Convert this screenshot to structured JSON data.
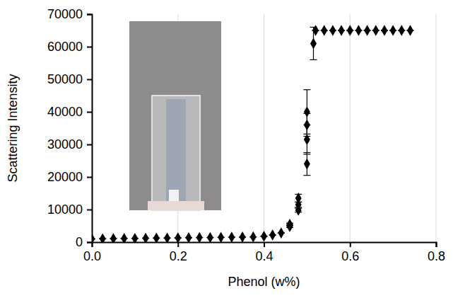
{
  "chart_data": {
    "type": "scatter",
    "x_label": "Phenol (w%)",
    "y_label": "Scattering Intensity",
    "x": [
      0,
      0.025,
      0.05,
      0.075,
      0.1,
      0.125,
      0.15,
      0.175,
      0.2,
      0.225,
      0.25,
      0.275,
      0.3,
      0.325,
      0.35,
      0.375,
      0.4,
      0.42,
      0.44,
      0.46,
      0.46,
      0.48,
      0.48,
      0.48,
      0.5,
      0.5,
      0.5,
      0.5,
      0.515,
      0.52,
      0.54,
      0.56,
      0.58,
      0.6,
      0.62,
      0.64,
      0.66,
      0.68,
      0.7,
      0.72,
      0.74
    ],
    "values": [
      1000,
      1050,
      1100,
      1150,
      1150,
      1200,
      1250,
      1250,
      1300,
      1350,
      1400,
      1400,
      1450,
      1500,
      1550,
      1600,
      1800,
      2200,
      2800,
      4800,
      5500,
      9800,
      11500,
      13500,
      24000,
      31500,
      36000,
      40000,
      61000,
      65000,
      65000,
      65000,
      65000,
      65000,
      65000,
      65000,
      65000,
      65000,
      65000,
      65000,
      65000
    ],
    "errors": [
      0,
      0,
      0,
      0,
      0,
      0,
      0,
      0,
      0,
      0,
      0,
      0,
      0,
      0,
      0,
      0,
      0,
      0,
      0,
      300,
      300,
      600,
      800,
      1200,
      3500,
      4500,
      3500,
      6800,
      5000,
      0,
      0,
      0,
      0,
      0,
      0,
      0,
      0,
      0,
      0,
      0,
      0
    ],
    "color": "#000000",
    "marker": "diamond",
    "xlim": [
      0,
      0.8
    ],
    "xticks": [
      {
        "value": 0,
        "label": "0.0"
      },
      0.2,
      0.4,
      0.6,
      0.8
    ],
    "ylim": [
      0,
      70000
    ],
    "yticks": [
      0,
      10000,
      20000,
      30000,
      40000,
      50000,
      60000,
      70000
    ],
    "grid": true
  }
}
